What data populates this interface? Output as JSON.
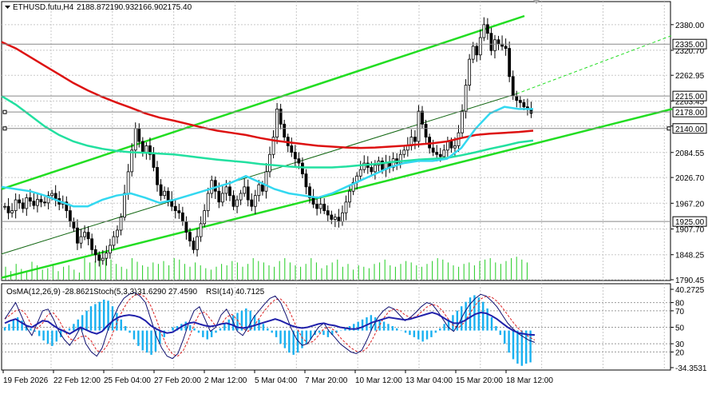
{
  "colors": {
    "background": "#ffffff",
    "grid": "#c8c8c8",
    "bull_candle": "#000000",
    "bear_candle": "#000000",
    "ma_slow": "#dd1111",
    "ma_mid": "#22e0a0",
    "ma_fast": "#33d8f0",
    "channel": "#22dd22",
    "trend_thin": "#116611",
    "volume": "#22cc22",
    "osma": "#18b0f0",
    "stoch_main": "#101070",
    "stoch_signal": "#dd2222",
    "rsi": "#2020aa",
    "level_line": "#888888"
  },
  "chart_data": {
    "type": "candlestick",
    "symbol_info": {
      "symbol": "ETHUSD.futu,H4",
      "open": "2188.87",
      "high": "2190.93",
      "low": "2166.90",
      "close": "2175.40"
    },
    "price_axis": {
      "min": 1790.45,
      "max": 2400,
      "ticks": [
        "2380.00",
        "2320.70",
        "2262.95",
        "2203.45",
        "2145.70",
        "2084.55",
        "2026.70",
        "1967.20",
        "1907.70",
        "1848.25",
        "1790.45"
      ]
    },
    "level_labels": [
      {
        "value": 2335.0,
        "text": "2335.00",
        "line": true
      },
      {
        "value": 2215.0,
        "text": "2215.00",
        "line": true
      },
      {
        "value": 2178.0,
        "text": "2178.00",
        "line": true
      },
      {
        "value": 2140.0,
        "text": "2140.00",
        "line": true
      },
      {
        "value": 1925.0,
        "text": "1925.00",
        "line": true
      }
    ],
    "time_axis": {
      "labels": [
        "19 Feb 2026",
        "22 Feb 12:00",
        "25 Feb 04:00",
        "27 Feb 20:00",
        "2 Mar 12:00",
        "5 Mar 04:00",
        "7 Mar 20:00",
        "10 Mar 12:00",
        "13 Mar 04:00",
        "15 Mar 20:00",
        "18 Mar 12:00"
      ]
    },
    "candles_close_path": [
      1960,
      1945,
      1950,
      1975,
      1968,
      1955,
      1980,
      1972,
      1962,
      1976,
      1970,
      1968,
      1985,
      1990,
      1978,
      1965,
      1970,
      1950,
      1925,
      1910,
      1875,
      1890,
      1900,
      1885,
      1860,
      1848,
      1835,
      1840,
      1852,
      1870,
      1890,
      1905,
      1935,
      1990,
      2040,
      2090,
      2140,
      2110,
      2085,
      2100,
      2080,
      2050,
      2010,
      1985,
      1995,
      1975,
      1960,
      1950,
      1945,
      1925,
      1900,
      1880,
      1860,
      1890,
      1920,
      1950,
      1990,
      2020,
      1995,
      1970,
      1990,
      2005,
      1985,
      1960,
      1975,
      1990,
      2005,
      1975,
      1960,
      1985,
      2010,
      1995,
      2040,
      2080,
      2120,
      2185,
      2150,
      2120,
      2100,
      2085,
      2070,
      2060,
      2035,
      2005,
      1980,
      1965,
      1955,
      1965,
      1950,
      1940,
      1930,
      1935,
      1925,
      1945,
      1970,
      1995,
      2015,
      2030,
      2045,
      2060,
      2050,
      2040,
      2055,
      2065,
      2045,
      2060,
      2050,
      2070,
      2060,
      2080,
      2090,
      2100,
      2120,
      2110,
      2180,
      2150,
      2120,
      2095,
      2085,
      2080,
      2075,
      2090,
      2110,
      2095,
      2100,
      2130,
      2180,
      2240,
      2300,
      2330,
      2310,
      2350,
      2380,
      2360,
      2320,
      2345,
      2335,
      2330,
      2325,
      2260,
      2215,
      2205,
      2200,
      2190,
      2185,
      2175
    ],
    "ma_slow": [
      2340,
      2325,
      2305,
      2285,
      2265,
      2245,
      2228,
      2213,
      2200,
      2188,
      2175,
      2165,
      2158,
      2150,
      2142,
      2135,
      2130,
      2125,
      2118,
      2112,
      2108,
      2104,
      2100,
      2098,
      2096,
      2095,
      2096,
      2098,
      2100,
      2103,
      2106,
      2110,
      2118,
      2125,
      2128,
      2130,
      2132,
      2135
    ],
    "ma_mid": [
      2215,
      2195,
      2170,
      2145,
      2125,
      2110,
      2100,
      2093,
      2088,
      2085,
      2084,
      2082,
      2080,
      2076,
      2072,
      2068,
      2065,
      2062,
      2058,
      2055,
      2052,
      2050,
      2050,
      2050,
      2052,
      2055,
      2058,
      2062,
      2065,
      2068,
      2070,
      2072,
      2078,
      2085,
      2093,
      2100,
      2108,
      2112
    ],
    "ma_fast": [
      2005,
      2000,
      1995,
      1985,
      1972,
      1960,
      1960,
      1975,
      1985,
      1990,
      1980,
      1968,
      1975,
      1985,
      1995,
      2005,
      2015,
      2030,
      2015,
      2000,
      1990,
      1985,
      1980,
      1990,
      2005,
      2020,
      2035,
      2050,
      2060,
      2065,
      2065,
      2070,
      2095,
      2140,
      2175,
      2190,
      2185,
      2185
    ],
    "channel_upper": [
      [
        0,
        2000
      ],
      [
        655,
        2400
      ]
    ],
    "channel_lower": [
      [
        0,
        1795
      ],
      [
        840,
        2185
      ]
    ],
    "trend_thin": [
      [
        0,
        1850
      ],
      [
        645,
        2220
      ]
    ],
    "trend_thin_dashed": [
      [
        645,
        2220
      ],
      [
        840,
        2355
      ]
    ],
    "indicators": {
      "labels": [
        {
          "name": "OsMA(12,26,9)",
          "value": "-28.8621"
        },
        {
          "name": "Stoch(5,3,3)",
          "value": "31.6290 27.4590"
        },
        {
          "name": "RSI(14)",
          "value": "40.7125"
        }
      ],
      "axis_ticks": [
        "40.2725",
        "80",
        "70",
        "50",
        "30",
        "20",
        "-34.3531"
      ],
      "osma": [
        3,
        6,
        10,
        12,
        9,
        5,
        2,
        -1,
        -5,
        -9,
        -12,
        -14,
        -10,
        -6,
        -2,
        2,
        6,
        10,
        14,
        18,
        22,
        24,
        26,
        28,
        27,
        22,
        16,
        10,
        4,
        -2,
        -8,
        -14,
        -18,
        -20,
        -22,
        -19,
        -12,
        -6,
        0,
        3,
        4,
        6,
        8,
        5,
        2,
        -2,
        -6,
        -8,
        -6,
        -2,
        2,
        6,
        10,
        14,
        16,
        18,
        20,
        18,
        14,
        10,
        6,
        2,
        -2,
        -6,
        -12,
        -16,
        -20,
        -22,
        -20,
        -16,
        -12,
        -8,
        -4,
        -2,
        -4,
        -6,
        -4,
        -2,
        0,
        2,
        4,
        6,
        8,
        10,
        12,
        14,
        12,
        10,
        8,
        6,
        4,
        2,
        0,
        -2,
        -4,
        -6,
        -8,
        -10,
        -8,
        -6,
        -2,
        2,
        6,
        10,
        14,
        18,
        22,
        26,
        30,
        32,
        30,
        26,
        20,
        12,
        4,
        -4,
        -12,
        -20,
        -26,
        -30,
        -32,
        -30,
        -28.86
      ],
      "stoch": [
        60,
        70,
        80,
        65,
        50,
        40,
        55,
        70,
        72,
        60,
        45,
        35,
        28,
        38,
        50,
        30,
        20,
        15,
        25,
        45,
        60,
        75,
        85,
        90,
        92,
        88,
        80,
        60,
        40,
        25,
        15,
        12,
        18,
        35,
        55,
        70,
        75,
        60,
        45,
        50,
        65,
        72,
        60,
        45,
        40,
        50,
        62,
        70,
        78,
        85,
        88,
        80,
        65,
        48,
        35,
        28,
        30,
        40,
        50,
        55,
        45,
        38,
        30,
        25,
        20,
        18,
        22,
        35,
        50,
        62,
        70,
        75,
        72,
        65,
        58,
        62,
        68,
        75,
        80,
        78,
        70,
        60,
        50,
        45,
        55,
        68,
        78,
        85,
        90,
        88,
        82,
        75,
        65,
        55,
        48,
        42,
        38,
        34,
        31.63
      ],
      "rsi": [
        55,
        58,
        60,
        56,
        52,
        50,
        54,
        58,
        57,
        52,
        48,
        45,
        42,
        46,
        50,
        47,
        44,
        42,
        45,
        52,
        58,
        62,
        64,
        65,
        64,
        62,
        58,
        52,
        48,
        45,
        43,
        44,
        48,
        52,
        55,
        56,
        54,
        52,
        51,
        52,
        54,
        55,
        53,
        50,
        49,
        50,
        52,
        54,
        56,
        58,
        60,
        58,
        55,
        52,
        50,
        49,
        50,
        52,
        54,
        55,
        53,
        52,
        50,
        49,
        48,
        48,
        50,
        53,
        56,
        58,
        60,
        62,
        61,
        60,
        59,
        60,
        62,
        64,
        66,
        68,
        66,
        62,
        58,
        55,
        55,
        58,
        62,
        66,
        68,
        67,
        64,
        60,
        55,
        50,
        46,
        43,
        42,
        41,
        40.7125
      ],
      "axis_min": -34.3531,
      "axis_max": 40.2725
    },
    "volume": [
      18,
      12,
      22,
      15,
      10,
      25,
      20,
      14,
      16,
      22,
      12,
      18,
      20,
      14,
      10,
      30,
      24,
      26,
      35,
      40,
      28,
      22,
      18,
      15,
      30,
      25,
      20,
      18,
      24,
      22,
      26,
      20,
      30,
      28,
      22,
      18,
      24,
      20,
      16,
      14,
      18,
      22,
      20,
      26,
      24,
      18,
      22,
      30,
      26,
      24,
      20,
      18,
      26,
      30,
      24,
      20,
      18,
      22,
      30,
      24,
      16,
      20,
      24,
      28,
      18,
      22,
      14,
      20,
      18,
      16,
      22,
      24,
      28,
      20,
      18,
      22,
      26,
      24,
      20,
      18,
      22,
      26,
      30,
      28,
      24,
      20,
      18,
      22,
      24,
      20,
      26,
      28,
      30,
      24,
      22,
      26,
      30,
      32,
      28,
      24
    ]
  }
}
